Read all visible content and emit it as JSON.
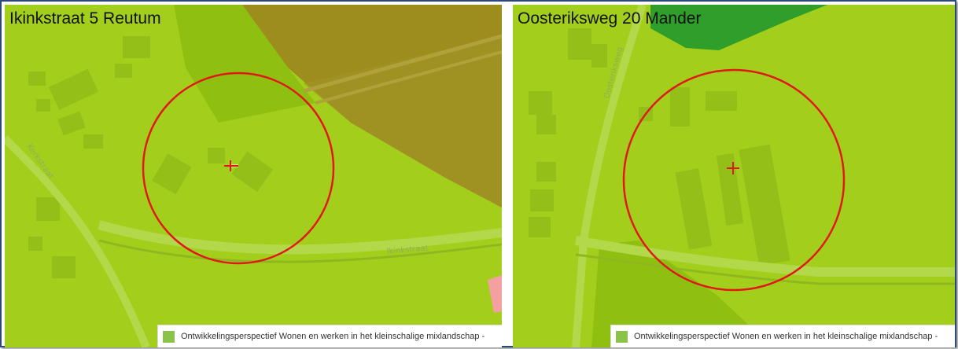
{
  "panels": {
    "left": {
      "title": "Ikinkstraat 5 Reutum",
      "streets": [
        "Kerkstraat",
        "Ikinkstraat"
      ],
      "legend": {
        "label": "Ontwikkelingsperspectief Wonen en werken in het kleinschalige mixlandschap -",
        "swatch_color": "#8bc34a"
      }
    },
    "right": {
      "title": "Oosteriksweg 20 Mander",
      "streets": [
        "Oosteriksweg"
      ],
      "legend": {
        "label": "Ontwikkelingsperspectief Wonen en werken in het kleinschalige mixlandschap -",
        "swatch_color": "#8bc34a"
      }
    }
  },
  "colors": {
    "base_zone": "#a3cf1c",
    "nature_zone": "#8fbf10",
    "forest_zone": "#2f9e2a",
    "brown_zone": "#9a8a1a",
    "pink_zone": "#f4a0a0",
    "buffer_circle": "#e01818",
    "frame_border": "#2b4a78"
  },
  "map_features": {
    "center_marker": "crosshair",
    "buffer": "circle"
  }
}
